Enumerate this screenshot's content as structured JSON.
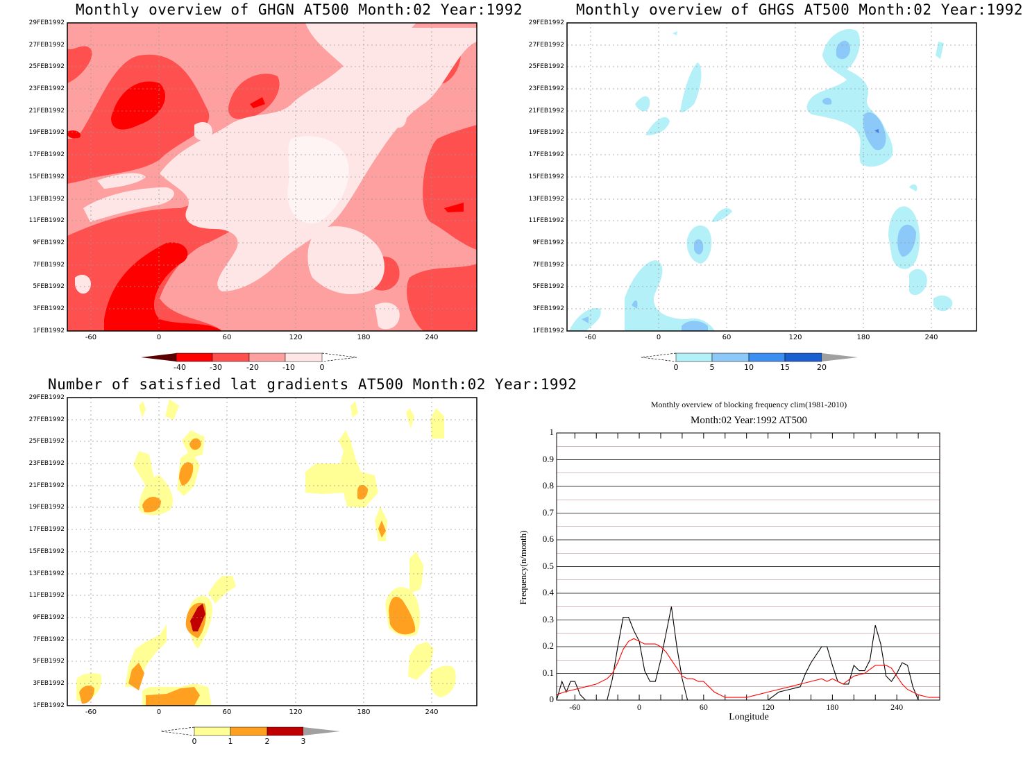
{
  "panels": [
    {
      "id": "ghgn",
      "title": "Monthly overview of GHGN AT500 Month:02 Year:1992"
    },
    {
      "id": "ghgs",
      "title": "Monthly overview of GHGS AT500 Month:02 Year:1992"
    },
    {
      "id": "grad",
      "title": "Number of satisfied lat gradients AT500 Month:02 Year:1992"
    }
  ],
  "y_ticks": [
    "1FEB1992",
    "3FEB1992",
    "5FEB1992",
    "7FEB1992",
    "9FEB1992",
    "11FEB1992",
    "13FEB1992",
    "15FEB1992",
    "17FEB1992",
    "19FEB1992",
    "21FEB1992",
    "23FEB1992",
    "25FEB1992",
    "27FEB1992",
    "29FEB1992"
  ],
  "x_ticks": [
    "-60",
    "0",
    "60",
    "120",
    "180",
    "240"
  ],
  "colorbars": {
    "ghgn": {
      "labels": [
        "-40",
        "-30",
        "-20",
        "-10",
        "0"
      ],
      "colors": [
        "#5a0000",
        "#ff0000",
        "#ff5050",
        "#ffa0a0",
        "#ffe6e6"
      ]
    },
    "ghgs": {
      "labels": [
        "0",
        "5",
        "10",
        "15",
        "20"
      ],
      "colors": [
        "#b4f0f8",
        "#8cc8f8",
        "#64a0f0",
        "#1e6ee0",
        "#0a50c8"
      ]
    },
    "grad": {
      "labels": [
        "0",
        "1",
        "2",
        "3"
      ],
      "colors": [
        "#ffff96",
        "#ffa020",
        "#c00000"
      ]
    }
  },
  "line_chart": {
    "title": "Monthly overview of blocking frequency clim(1981-2010)",
    "subtitle": "Month:02 Year:1992  AT500",
    "xlabel": "Longitude",
    "ylabel": "Frequency(n/month)",
    "y_ticks": [
      "0",
      "0.1",
      "0.2",
      "0.3",
      "0.4",
      "0.5",
      "0.6",
      "0.7",
      "0.8",
      "0.9",
      "1"
    ],
    "x_ticks": [
      "-60",
      "0",
      "60",
      "120",
      "180",
      "240"
    ]
  },
  "chart_data": [
    {
      "type": "heatmap",
      "title": "Monthly overview of GHGN AT500 Month:02 Year:1992",
      "xlim": [
        -77,
        280
      ],
      "ylim": [
        1,
        29
      ],
      "levels": [
        -40,
        -30,
        -20,
        -10,
        0
      ]
    },
    {
      "type": "heatmap",
      "title": "Monthly overview of GHGS AT500 Month:02 Year:1992",
      "xlim": [
        -77,
        280
      ],
      "ylim": [
        1,
        29
      ],
      "levels": [
        0,
        5,
        10,
        15,
        20
      ]
    },
    {
      "type": "heatmap",
      "title": "Number of satisfied lat gradients AT500 Month:02 Year:1992",
      "xlim": [
        -77,
        280
      ],
      "ylim": [
        1,
        29
      ],
      "levels": [
        0,
        1,
        2,
        3
      ]
    },
    {
      "type": "line",
      "title": "Monthly overview of blocking frequency clim(1981-2010)",
      "xlabel": "Longitude",
      "ylabel": "Frequency(n/month)",
      "xlim": [
        -77,
        280
      ],
      "ylim": [
        0,
        1
      ],
      "series": [
        {
          "color": "#000000",
          "x": [
            -77,
            -72,
            -68,
            -64,
            -60,
            -55,
            -50,
            -45,
            -40,
            -35,
            -30,
            -25,
            -20,
            -15,
            -10,
            -5,
            0,
            5,
            10,
            15,
            20,
            25,
            30,
            35,
            40,
            45,
            50,
            55,
            60,
            65,
            70,
            80,
            100,
            120,
            130,
            140,
            150,
            155,
            160,
            165,
            170,
            175,
            180,
            185,
            190,
            195,
            200,
            205,
            210,
            215,
            220,
            225,
            230,
            235,
            240,
            245,
            250,
            255,
            260,
            265,
            270,
            275,
            280
          ],
          "y": [
            0,
            0.07,
            0.03,
            0.07,
            0.07,
            0.02,
            0,
            0,
            0,
            0,
            0,
            0.08,
            0.2,
            0.31,
            0.31,
            0.26,
            0.22,
            0.11,
            0.07,
            0.07,
            0.15,
            0.25,
            0.35,
            0.2,
            0.08,
            0,
            0,
            0,
            0,
            0,
            0,
            0,
            0,
            0,
            0.03,
            0.04,
            0.05,
            0.1,
            0.14,
            0.17,
            0.2,
            0.2,
            0.13,
            0.07,
            0.06,
            0.06,
            0.13,
            0.11,
            0.11,
            0.15,
            0.28,
            0.21,
            0.09,
            0.07,
            0.1,
            0.14,
            0.13,
            0.05,
            0,
            0,
            0,
            0,
            0
          ]
        },
        {
          "color": "#ff0000",
          "x": [
            -77,
            -70,
            -60,
            -50,
            -40,
            -30,
            -25,
            -20,
            -15,
            -10,
            -5,
            0,
            5,
            10,
            15,
            20,
            25,
            30,
            35,
            40,
            45,
            50,
            55,
            60,
            65,
            70,
            75,
            80,
            90,
            100,
            110,
            120,
            130,
            140,
            150,
            160,
            170,
            175,
            180,
            185,
            190,
            200,
            210,
            220,
            230,
            235,
            240,
            245,
            250,
            255,
            260,
            270,
            280
          ],
          "y": [
            0.02,
            0.03,
            0.04,
            0.05,
            0.06,
            0.08,
            0.1,
            0.14,
            0.19,
            0.22,
            0.23,
            0.22,
            0.21,
            0.21,
            0.21,
            0.2,
            0.18,
            0.15,
            0.12,
            0.09,
            0.08,
            0.08,
            0.07,
            0.07,
            0.05,
            0.03,
            0.02,
            0.01,
            0.01,
            0.01,
            0.02,
            0.03,
            0.04,
            0.05,
            0.06,
            0.07,
            0.08,
            0.07,
            0.08,
            0.07,
            0.06,
            0.09,
            0.1,
            0.13,
            0.13,
            0.12,
            0.09,
            0.06,
            0.04,
            0.03,
            0.02,
            0.01,
            0.01
          ]
        }
      ]
    }
  ]
}
